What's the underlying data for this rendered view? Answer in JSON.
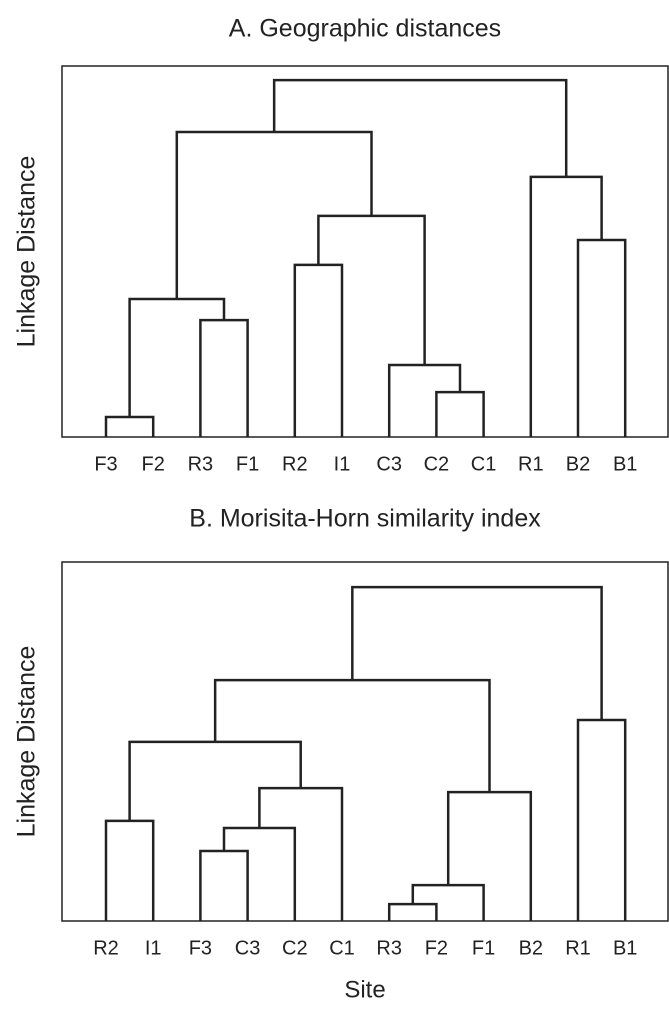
{
  "chart_data": [
    {
      "type": "dendrogram",
      "title": "A. Geographic distances",
      "y_label": "Linkage Distance",
      "ylim": [
        0,
        100
      ],
      "color": "#222222",
      "tree": {
        "height": 96.2,
        "children": [
          {
            "height": 82.2,
            "children": [
              {
                "height": 37.2,
                "children": [
                  {
                    "height": 5.4,
                    "children": [
                      {
                        "label": "F3"
                      },
                      {
                        "label": "F2"
                      }
                    ]
                  },
                  {
                    "height": 31.5,
                    "children": [
                      {
                        "label": "R3"
                      },
                      {
                        "label": "F1"
                      }
                    ]
                  }
                ]
              },
              {
                "height": 59.6,
                "children": [
                  {
                    "height": 46.4,
                    "children": [
                      {
                        "label": "R2"
                      },
                      {
                        "label": "I1"
                      }
                    ]
                  },
                  {
                    "height": 19.4,
                    "children": [
                      {
                        "label": "C3"
                      },
                      {
                        "height": 12.1,
                        "children": [
                          {
                            "label": "C2"
                          },
                          {
                            "label": "C1"
                          }
                        ]
                      }
                    ]
                  }
                ]
              }
            ]
          },
          {
            "height": 70.1,
            "children": [
              {
                "label": "R1"
              },
              {
                "height": 53.1,
                "children": [
                  {
                    "label": "B2"
                  },
                  {
                    "label": "B1"
                  }
                ]
              }
            ]
          }
        ]
      }
    },
    {
      "type": "dendrogram",
      "title": "B. Morisita-Horn similarity index",
      "y_label": "Linkage Distance",
      "x_label": "Site",
      "ylim": [
        0,
        100
      ],
      "color": "#222222",
      "tree": {
        "height": 93.0,
        "children": [
          {
            "height": 67.1,
            "children": [
              {
                "height": 49.9,
                "children": [
                  {
                    "height": 27.9,
                    "children": [
                      {
                        "label": "R2"
                      },
                      {
                        "label": "I1"
                      }
                    ]
                  },
                  {
                    "height": 37.0,
                    "children": [
                      {
                        "height": 25.9,
                        "children": [
                          {
                            "height": 19.5,
                            "children": [
                              {
                                "label": "F3"
                              },
                              {
                                "label": "C3"
                              }
                            ]
                          },
                          {
                            "label": "C2"
                          }
                        ]
                      },
                      {
                        "label": "C1"
                      }
                    ]
                  }
                ]
              },
              {
                "height": 35.9,
                "children": [
                  {
                    "height": 10.0,
                    "children": [
                      {
                        "height": 4.7,
                        "children": [
                          {
                            "label": "R3"
                          },
                          {
                            "label": "F2"
                          }
                        ]
                      },
                      {
                        "label": "F1"
                      }
                    ]
                  },
                  {
                    "label": "B2"
                  }
                ]
              }
            ]
          },
          {
            "height": 56.0,
            "children": [
              {
                "label": "R1"
              },
              {
                "label": "B1"
              }
            ]
          }
        ]
      }
    }
  ]
}
